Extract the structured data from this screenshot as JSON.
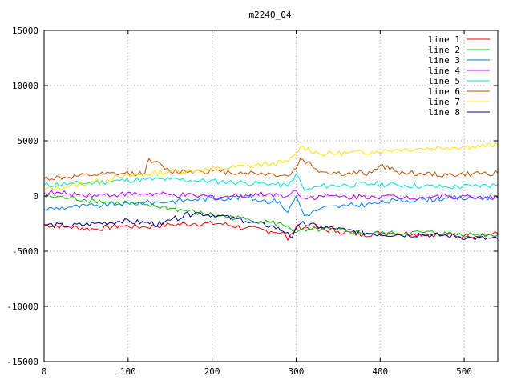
{
  "chart_data": {
    "type": "line",
    "title": "m2240_04",
    "xlabel": "",
    "ylabel": "",
    "xlim": [
      0,
      540
    ],
    "ylim": [
      -15000,
      15000
    ],
    "x_ticks": [
      0,
      100,
      200,
      300,
      400,
      500
    ],
    "y_ticks": [
      -15000,
      -10000,
      -5000,
      0,
      5000,
      10000,
      15000
    ],
    "grid": true,
    "legend_position": "top-right",
    "series": [
      {
        "name": "line 1",
        "color": "#ff0000",
        "x": [
          0,
          30,
          60,
          90,
          120,
          150,
          180,
          210,
          240,
          270,
          285,
          290,
          300,
          320,
          350,
          380,
          410,
          440,
          470,
          500,
          530,
          540
        ],
        "y": [
          -2600,
          -2800,
          -3000,
          -2700,
          -2800,
          -2600,
          -2500,
          -2500,
          -2900,
          -3200,
          -3300,
          -4000,
          -2800,
          -2900,
          -3200,
          -3500,
          -3300,
          -3400,
          -3500,
          -3600,
          -3500,
          -3400
        ]
      },
      {
        "name": "line 2",
        "color": "#00c000",
        "x": [
          0,
          30,
          60,
          90,
          120,
          150,
          180,
          210,
          240,
          270,
          290,
          300,
          330,
          360,
          390,
          420,
          450,
          480,
          510,
          540
        ],
        "y": [
          0,
          -200,
          -400,
          -700,
          -800,
          -1100,
          -1500,
          -1800,
          -2100,
          -2400,
          -2700,
          -3300,
          -3000,
          -3200,
          -3400,
          -3400,
          -3300,
          -3400,
          -3500,
          -3500
        ]
      },
      {
        "name": "line 3",
        "color": "#0080ff",
        "x": [
          0,
          30,
          60,
          90,
          120,
          150,
          180,
          210,
          240,
          260,
          280,
          290,
          300,
          310,
          330,
          360,
          390,
          420,
          450,
          480,
          510,
          540
        ],
        "y": [
          -1200,
          -1000,
          -900,
          -700,
          -600,
          -500,
          -300,
          -200,
          -100,
          -400,
          -500,
          -1500,
          0,
          -1800,
          -1100,
          -900,
          -700,
          -400,
          -300,
          -200,
          -200,
          -100
        ]
      },
      {
        "name": "line 4",
        "color": "#c000ff",
        "x": [
          0,
          30,
          60,
          90,
          120,
          150,
          180,
          210,
          240,
          270,
          290,
          300,
          310,
          330,
          360,
          390,
          420,
          450,
          480,
          510,
          540
        ],
        "y": [
          300,
          200,
          100,
          150,
          200,
          100,
          0,
          -100,
          100,
          200,
          0,
          500,
          -200,
          0,
          -100,
          0,
          -100,
          -100,
          0,
          -100,
          -100
        ]
      },
      {
        "name": "line 5",
        "color": "#00e0e0",
        "x": [
          0,
          30,
          60,
          90,
          120,
          150,
          180,
          210,
          240,
          270,
          290,
          300,
          310,
          330,
          360,
          390,
          420,
          450,
          480,
          510,
          540
        ],
        "y": [
          1000,
          1100,
          1200,
          1400,
          1500,
          1500,
          1400,
          1300,
          1200,
          1100,
          900,
          2000,
          500,
          900,
          1000,
          1100,
          1000,
          900,
          800,
          900,
          1000
        ]
      },
      {
        "name": "line 6",
        "color": "#c05000",
        "x": [
          0,
          30,
          60,
          90,
          120,
          125,
          150,
          180,
          210,
          240,
          270,
          290,
          300,
          305,
          330,
          360,
          390,
          400,
          420,
          450,
          480,
          510,
          540
        ],
        "y": [
          1600,
          1700,
          1900,
          2000,
          2100,
          3400,
          2200,
          2300,
          2200,
          2100,
          2000,
          1800,
          2500,
          3400,
          2200,
          2000,
          2100,
          2800,
          2200,
          2000,
          1900,
          2000,
          2100
        ]
      },
      {
        "name": "line 7",
        "color": "#ffe000",
        "x": [
          0,
          30,
          60,
          90,
          120,
          150,
          180,
          210,
          240,
          270,
          290,
          300,
          305,
          330,
          360,
          390,
          420,
          450,
          480,
          510,
          540
        ],
        "y": [
          600,
          900,
          1300,
          1700,
          2000,
          2200,
          2300,
          2500,
          2700,
          2900,
          3100,
          3800,
          4500,
          3800,
          3900,
          4000,
          4200,
          4300,
          4400,
          4500,
          4600
        ]
      },
      {
        "name": "line 8",
        "color": "#000090",
        "x": [
          0,
          30,
          60,
          90,
          120,
          140,
          150,
          180,
          210,
          240,
          270,
          290,
          295,
          305,
          330,
          360,
          390,
          420,
          450,
          480,
          510,
          540
        ],
        "y": [
          -2600,
          -2700,
          -2500,
          -2300,
          -2400,
          -2600,
          -2200,
          -1500,
          -1800,
          -2300,
          -2700,
          -3300,
          -3800,
          -2500,
          -2800,
          -3100,
          -3400,
          -3500,
          -3500,
          -3600,
          -3800,
          -3900
        ]
      }
    ]
  }
}
